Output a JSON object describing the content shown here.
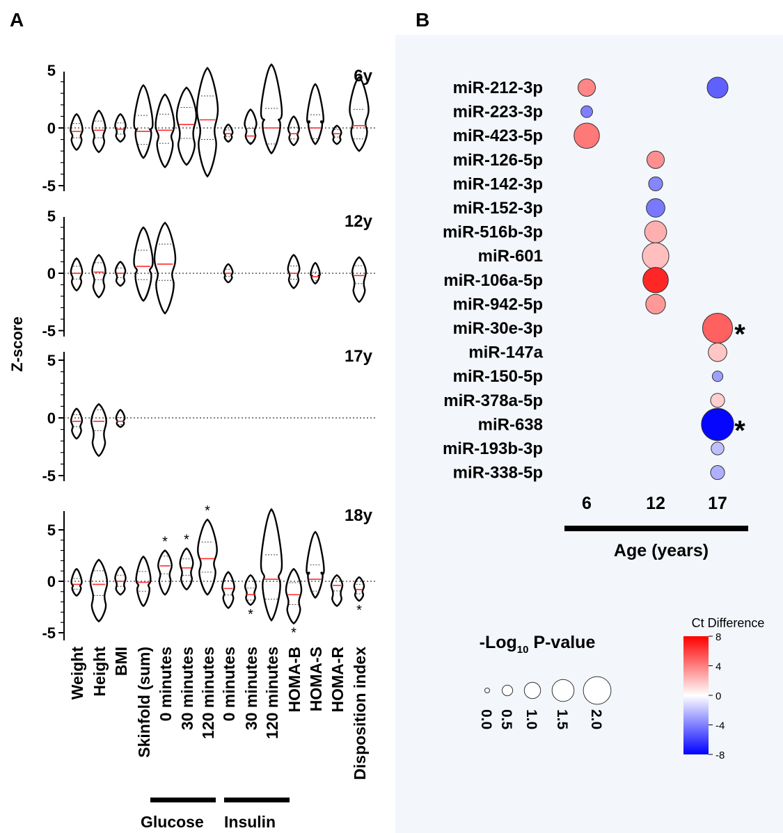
{
  "panels": {
    "a": "A",
    "b": "B"
  },
  "chart_data": [
    {
      "type": "violin",
      "ylabel": "Z-score",
      "yticks": [
        "5",
        "0",
        "-5"
      ],
      "ylim": [
        -5.5,
        6
      ],
      "categories": [
        "Weight",
        "Height",
        "BMI",
        "Skinfold (sum)",
        "0 minutes",
        "30 minutes",
        "120 minutes",
        "0 minutes",
        "30 minutes",
        "120 minutes",
        "HOMA-B",
        "HOMA-S",
        "HOMA-R",
        "Disposition index"
      ],
      "group_labels": {
        "glucose": "Glucose",
        "insulin": "Insulin"
      },
      "facets": [
        {
          "label": "6y",
          "medians": [
            -0.3,
            -0.2,
            -0.1,
            -0.3,
            -0.2,
            0.3,
            0.7,
            -0.5,
            -0.7,
            0.0,
            -0.5,
            0.0,
            -0.5,
            0.2
          ],
          "ranges": [
            [
              -1.9,
              1.2
            ],
            [
              -2.1,
              1.5
            ],
            [
              -1.2,
              1.2
            ],
            [
              -2.6,
              3.7
            ],
            [
              -3.4,
              2.9
            ],
            [
              -3.2,
              3.5
            ],
            [
              -4.2,
              5.2
            ],
            [
              -1.2,
              0.3
            ],
            [
              -1.4,
              1.6
            ],
            [
              -2.2,
              5.5
            ],
            [
              -1.5,
              1.0
            ],
            [
              -1.4,
              3.8
            ],
            [
              -1.4,
              0.2
            ],
            [
              -2.0,
              4.4
            ]
          ]
        },
        {
          "label": "12y",
          "medians": [
            0.0,
            0.1,
            0.0,
            0.6,
            0.8,
            null,
            null,
            0.0,
            null,
            null,
            0.0,
            -0.3,
            null,
            -0.2
          ],
          "ranges": [
            [
              -1.5,
              1.3
            ],
            [
              -2.1,
              1.6
            ],
            [
              -1.1,
              1.0
            ],
            [
              -2.4,
              4.0
            ],
            [
              -3.5,
              4.4
            ],
            null,
            null,
            [
              -0.8,
              0.8
            ],
            null,
            null,
            [
              -1.3,
              1.6
            ],
            [
              -0.9,
              0.9
            ],
            null,
            [
              -2.5,
              1.4
            ]
          ]
        },
        {
          "label": "17y",
          "medians": [
            -0.3,
            -0.3,
            -0.3,
            null,
            null,
            null,
            null,
            null,
            null,
            null,
            null,
            null,
            null,
            null
          ],
          "ranges": [
            [
              -1.8,
              0.8
            ],
            [
              -3.3,
              1.2
            ],
            [
              -0.8,
              0.7
            ],
            null,
            null,
            null,
            null,
            null,
            null,
            null,
            null,
            null,
            null,
            null
          ]
        },
        {
          "label": "18y",
          "medians": [
            -0.3,
            -0.3,
            0.0,
            -0.1,
            1.5,
            1.3,
            2.2,
            -0.7,
            -1.3,
            0.2,
            -1.3,
            0.2,
            -0.4,
            -0.8
          ],
          "ranges": [
            [
              -1.4,
              1.2
            ],
            [
              -3.9,
              2.1
            ],
            [
              -1.3,
              1.4
            ],
            [
              -2.4,
              2.4
            ],
            [
              -1.3,
              3.0
            ],
            [
              -0.8,
              3.2
            ],
            [
              -1.3,
              6.0
            ],
            [
              -2.6,
              0.9
            ],
            [
              -2.3,
              0.6
            ],
            [
              -3.8,
              7.0
            ],
            [
              -4.1,
              1.2
            ],
            [
              -1.6,
              4.8
            ],
            [
              -2.4,
              0.6
            ],
            [
              -1.9,
              0.4
            ]
          ],
          "significant": [
            {
              "index": 4,
              "side": "above"
            },
            {
              "index": 5,
              "side": "above"
            },
            {
              "index": 6,
              "side": "above"
            },
            {
              "index": 8,
              "side": "below"
            },
            {
              "index": 10,
              "side": "below"
            },
            {
              "index": 13,
              "side": "below"
            }
          ]
        }
      ]
    },
    {
      "type": "scatter",
      "subtype": "bubble",
      "xlabel": "Age (years)",
      "x_categories": [
        "6",
        "12",
        "17"
      ],
      "y_categories": [
        "miR-212-3p",
        "miR-223-3p",
        "miR-423-5p",
        "miR-126-5p",
        "miR-142-3p",
        "miR-152-3p",
        "miR-516b-3p",
        "miR-601",
        "miR-106a-5p",
        "miR-942-5p",
        "miR-30e-3p",
        "miR-147a",
        "miR-150-5p",
        "miR-378a-5p",
        "miR-638",
        "miR-193b-3p",
        "miR-338-5p"
      ],
      "points": [
        {
          "mirna": "miR-212-3p",
          "age": "6",
          "neglog10p": 1.1,
          "ct_difference": 3.8
        },
        {
          "mirna": "miR-212-3p",
          "age": "17",
          "neglog10p": 1.4,
          "ct_difference": -5.0
        },
        {
          "mirna": "miR-223-3p",
          "age": "6",
          "neglog10p": 0.6,
          "ct_difference": -4.0
        },
        {
          "mirna": "miR-423-5p",
          "age": "6",
          "neglog10p": 1.8,
          "ct_difference": 4.2
        },
        {
          "mirna": "miR-126-5p",
          "age": "12",
          "neglog10p": 1.1,
          "ct_difference": 3.5
        },
        {
          "mirna": "miR-142-3p",
          "age": "12",
          "neglog10p": 0.8,
          "ct_difference": -3.8
        },
        {
          "mirna": "miR-152-3p",
          "age": "12",
          "neglog10p": 1.2,
          "ct_difference": -4.2
        },
        {
          "mirna": "miR-516b-3p",
          "age": "12",
          "neglog10p": 1.5,
          "ct_difference": 2.5
        },
        {
          "mirna": "miR-601",
          "age": "12",
          "neglog10p": 1.9,
          "ct_difference": 2.0
        },
        {
          "mirna": "miR-106a-5p",
          "age": "12",
          "neglog10p": 1.8,
          "ct_difference": 6.8
        },
        {
          "mirna": "miR-942-5p",
          "age": "12",
          "neglog10p": 1.3,
          "ct_difference": 3.2
        },
        {
          "mirna": "miR-30e-3p",
          "age": "17",
          "neglog10p": 2.2,
          "ct_difference": 5.0
        },
        {
          "mirna": "miR-147a",
          "age": "17",
          "neglog10p": 1.2,
          "ct_difference": 1.8
        },
        {
          "mirna": "miR-150-5p",
          "age": "17",
          "neglog10p": 0.5,
          "ct_difference": -3.0
        },
        {
          "mirna": "miR-378a-5p",
          "age": "17",
          "neglog10p": 0.8,
          "ct_difference": 1.5
        },
        {
          "mirna": "miR-638",
          "age": "17",
          "neglog10p": 2.4,
          "ct_difference": -7.8
        },
        {
          "mirna": "miR-193b-3p",
          "age": "17",
          "neglog10p": 0.7,
          "ct_difference": -2.0
        },
        {
          "mirna": "miR-338-5p",
          "age": "17",
          "neglog10p": 0.8,
          "ct_difference": -2.5
        }
      ],
      "significant": [
        "miR-30e-3p",
        "miR-638"
      ],
      "significance_marker": "*",
      "size_legend": {
        "title_prefix": "-Log",
        "title_sub": "10",
        "title_suffix": " P-value",
        "values": [
          0.0,
          0.5,
          1.0,
          1.5,
          2.0
        ],
        "labels": [
          "0.0",
          "0.5",
          "1.0",
          "1.5",
          "2.0"
        ]
      },
      "color_legend": {
        "title": "Ct Difference",
        "ticks": [
          "8",
          "4",
          "0",
          "-4",
          "-8"
        ],
        "range": [
          -8,
          8
        ],
        "colors": {
          "high": "#ff0000",
          "mid": "#ffffff",
          "low": "#0000ff"
        }
      }
    }
  ]
}
